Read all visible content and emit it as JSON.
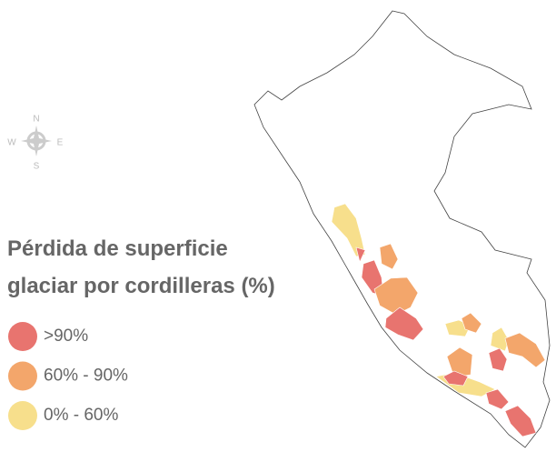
{
  "compass": {
    "north": "N",
    "west": "W",
    "east": "E",
    "south": "S"
  },
  "legend": {
    "title_lines": [
      "Pérdida de superficie",
      "glaciar por cordilleras (%)"
    ],
    "items": [
      {
        "label": ">90%",
        "color": "#e8746f"
      },
      {
        "label": "60% - 90%",
        "color": "#f3a66b"
      },
      {
        "label": "0% - 60%",
        "color": "#f7df8c"
      }
    ]
  }
}
